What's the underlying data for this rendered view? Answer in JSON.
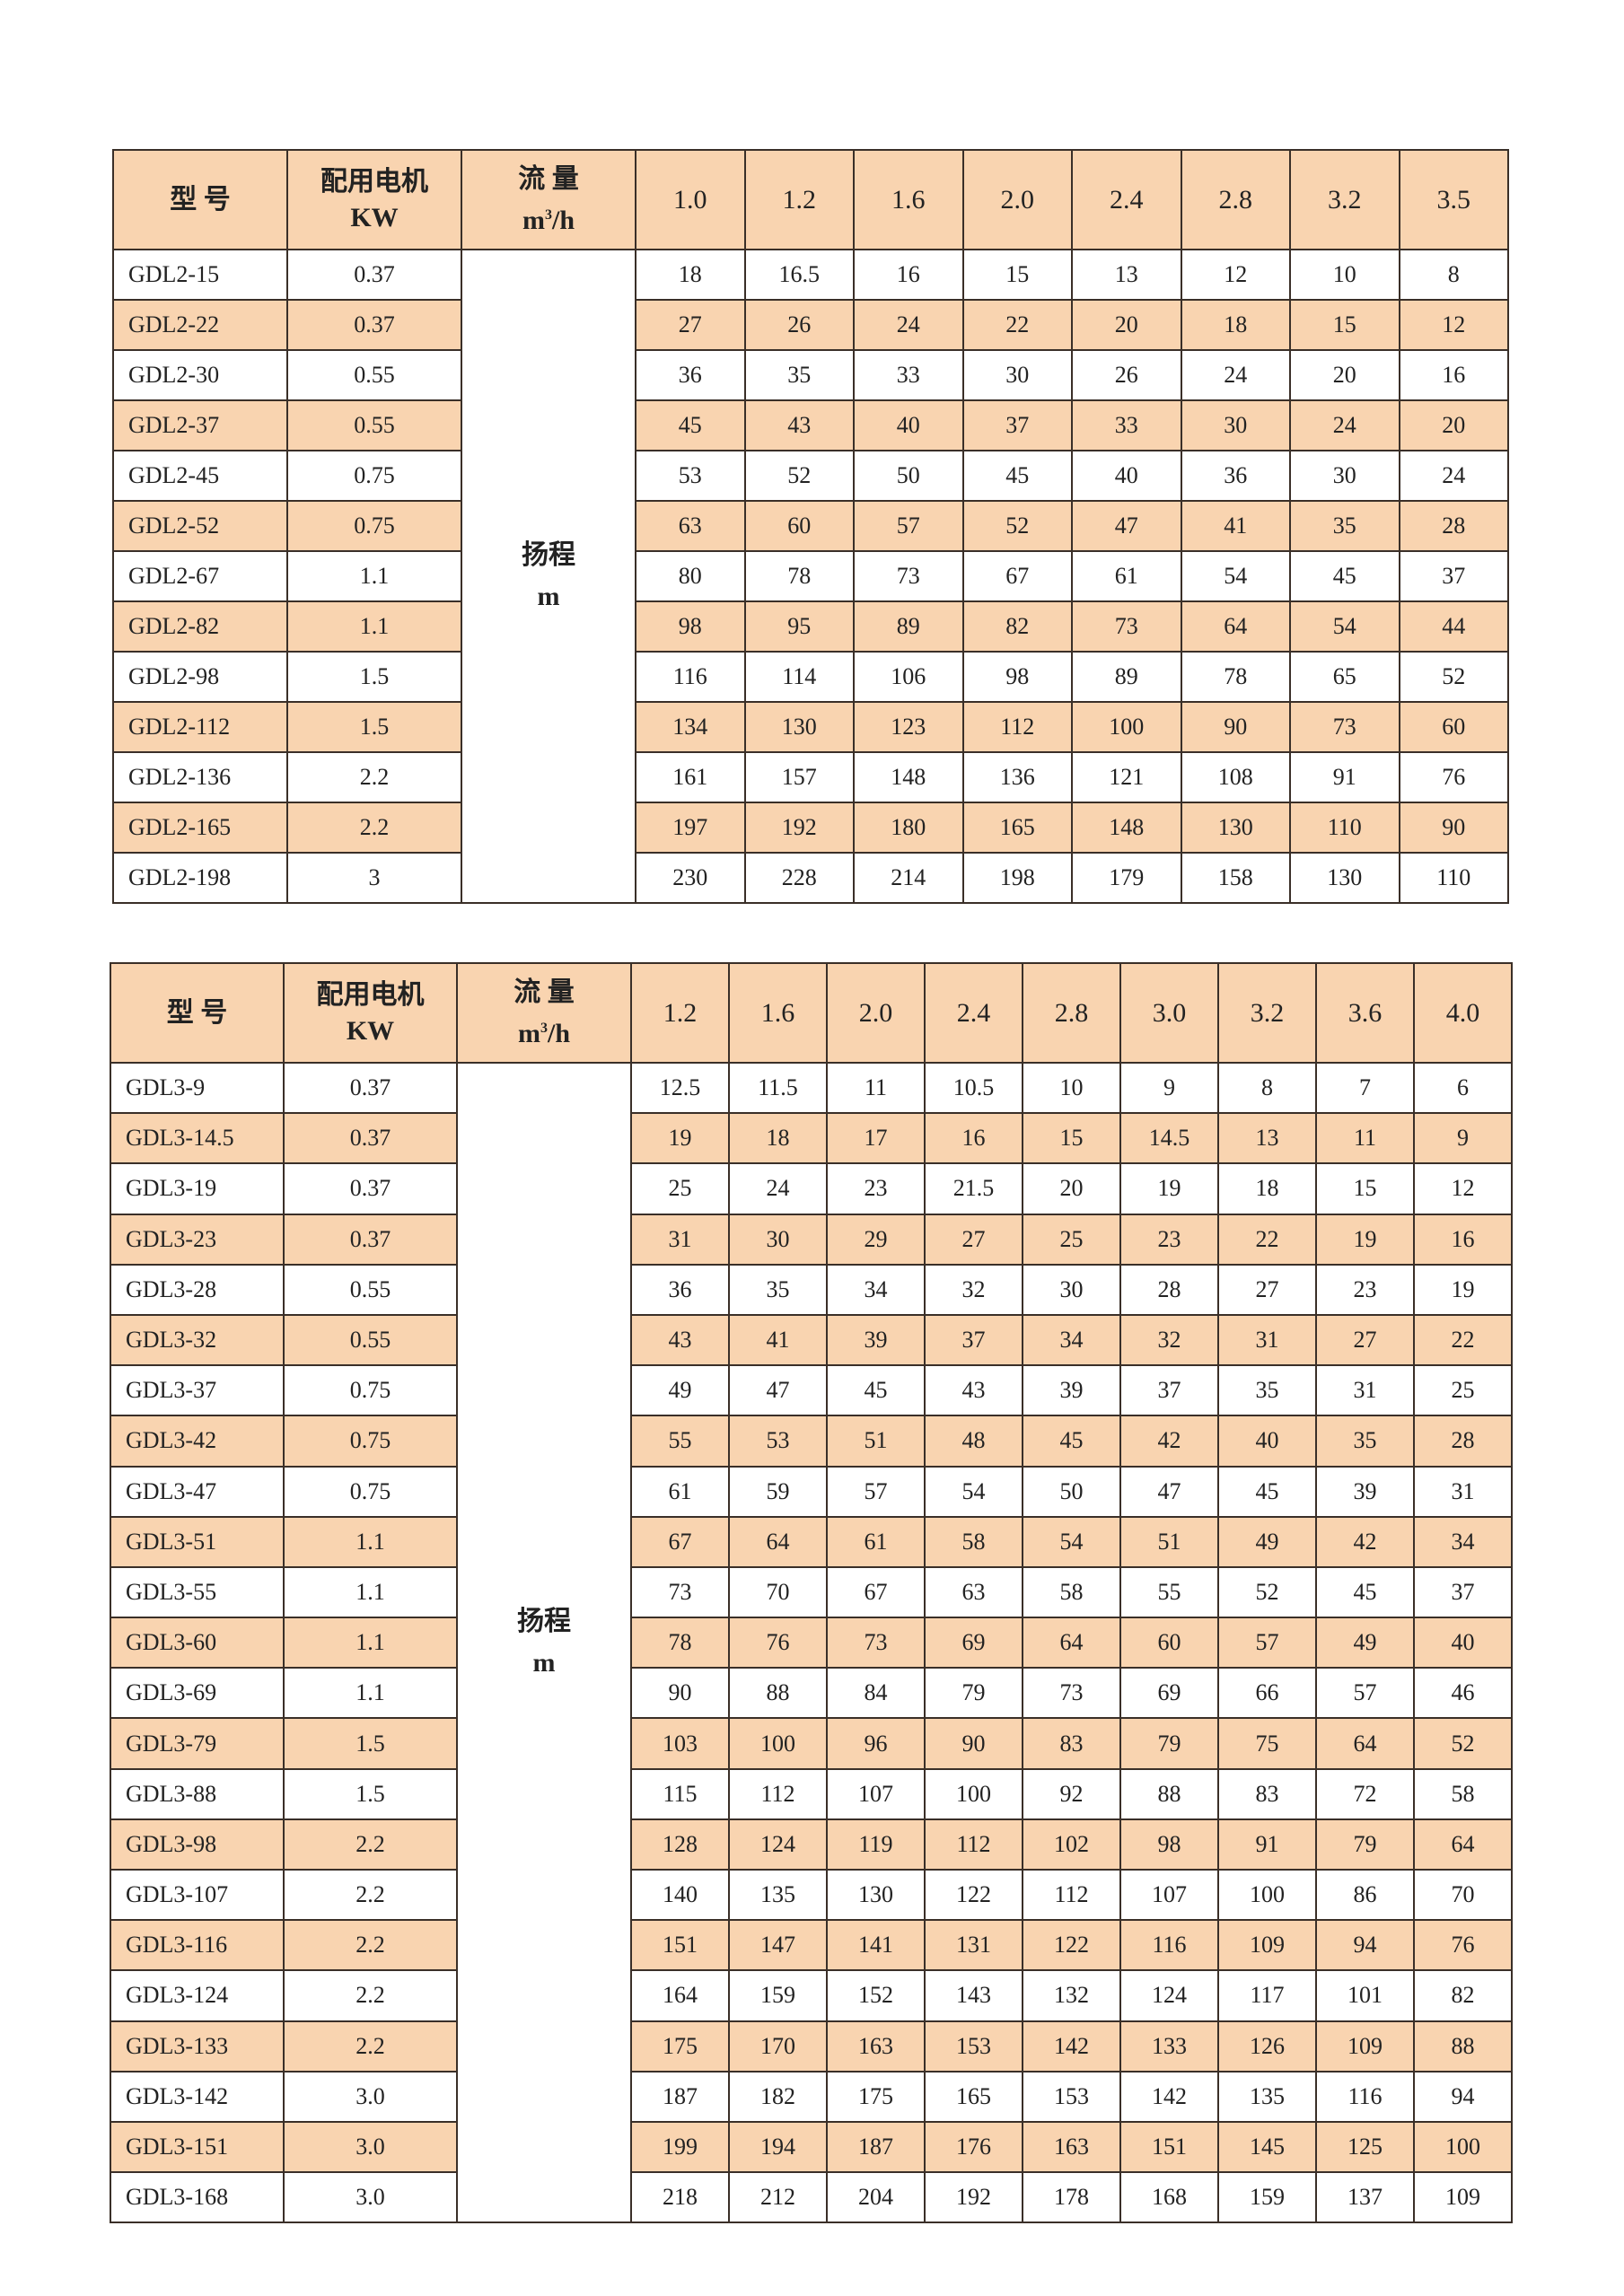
{
  "colors": {
    "header_bg": "#f9d4b0",
    "alt_row_bg": "#f9d4b0",
    "border": "#3a2f28"
  },
  "tables": [
    {
      "headers": {
        "model": "型  号",
        "motor_line1": "配用电机",
        "motor_line2": "KW",
        "flow_line1": "流 量",
        "flow_unit_base": "m",
        "flow_unit_sup": "3",
        "flow_unit_tail": "/h"
      },
      "flows": [
        "1.0",
        "1.2",
        "1.6",
        "2.0",
        "2.4",
        "2.8",
        "3.2",
        "3.5"
      ],
      "head_label": "扬程",
      "head_unit": "m",
      "rows": [
        {
          "model": "GDL2-15",
          "kw": "0.37",
          "heads": [
            "18",
            "16.5",
            "16",
            "15",
            "13",
            "12",
            "10",
            "8"
          ]
        },
        {
          "model": "GDL2-22",
          "kw": "0.37",
          "heads": [
            "27",
            "26",
            "24",
            "22",
            "20",
            "18",
            "15",
            "12"
          ]
        },
        {
          "model": "GDL2-30",
          "kw": "0.55",
          "heads": [
            "36",
            "35",
            "33",
            "30",
            "26",
            "24",
            "20",
            "16"
          ]
        },
        {
          "model": "GDL2-37",
          "kw": "0.55",
          "heads": [
            "45",
            "43",
            "40",
            "37",
            "33",
            "30",
            "24",
            "20"
          ]
        },
        {
          "model": "GDL2-45",
          "kw": "0.75",
          "heads": [
            "53",
            "52",
            "50",
            "45",
            "40",
            "36",
            "30",
            "24"
          ]
        },
        {
          "model": "GDL2-52",
          "kw": "0.75",
          "heads": [
            "63",
            "60",
            "57",
            "52",
            "47",
            "41",
            "35",
            "28"
          ]
        },
        {
          "model": "GDL2-67",
          "kw": "1.1",
          "heads": [
            "80",
            "78",
            "73",
            "67",
            "61",
            "54",
            "45",
            "37"
          ]
        },
        {
          "model": "GDL2-82",
          "kw": "1.1",
          "heads": [
            "98",
            "95",
            "89",
            "82",
            "73",
            "64",
            "54",
            "44"
          ]
        },
        {
          "model": "GDL2-98",
          "kw": "1.5",
          "heads": [
            "116",
            "114",
            "106",
            "98",
            "89",
            "78",
            "65",
            "52"
          ]
        },
        {
          "model": "GDL2-112",
          "kw": "1.5",
          "heads": [
            "134",
            "130",
            "123",
            "112",
            "100",
            "90",
            "73",
            "60"
          ]
        },
        {
          "model": "GDL2-136",
          "kw": "2.2",
          "heads": [
            "161",
            "157",
            "148",
            "136",
            "121",
            "108",
            "91",
            "76"
          ]
        },
        {
          "model": "GDL2-165",
          "kw": "2.2",
          "heads": [
            "197",
            "192",
            "180",
            "165",
            "148",
            "130",
            "110",
            "90"
          ]
        },
        {
          "model": "GDL2-198",
          "kw": "3",
          "heads": [
            "230",
            "228",
            "214",
            "198",
            "179",
            "158",
            "130",
            "110"
          ]
        }
      ]
    },
    {
      "headers": {
        "model": "型  号",
        "motor_line1": "配用电机",
        "motor_line2": "KW",
        "flow_line1": "流 量",
        "flow_unit_base": "m",
        "flow_unit_sup": "3",
        "flow_unit_tail": "/h"
      },
      "flows": [
        "1.2",
        "1.6",
        "2.0",
        "2.4",
        "2.8",
        "3.0",
        "3.2",
        "3.6",
        "4.0"
      ],
      "head_label": "扬程",
      "head_unit": "m",
      "rows": [
        {
          "model": "GDL3-9",
          "kw": "0.37",
          "heads": [
            "12.5",
            "11.5",
            "11",
            "10.5",
            "10",
            "9",
            "8",
            "7",
            "6"
          ]
        },
        {
          "model": "GDL3-14.5",
          "kw": "0.37",
          "heads": [
            "19",
            "18",
            "17",
            "16",
            "15",
            "14.5",
            "13",
            "11",
            "9"
          ]
        },
        {
          "model": "GDL3-19",
          "kw": "0.37",
          "heads": [
            "25",
            "24",
            "23",
            "21.5",
            "20",
            "19",
            "18",
            "15",
            "12"
          ]
        },
        {
          "model": "GDL3-23",
          "kw": "0.37",
          "heads": [
            "31",
            "30",
            "29",
            "27",
            "25",
            "23",
            "22",
            "19",
            "16"
          ]
        },
        {
          "model": "GDL3-28",
          "kw": "0.55",
          "heads": [
            "36",
            "35",
            "34",
            "32",
            "30",
            "28",
            "27",
            "23",
            "19"
          ]
        },
        {
          "model": "GDL3-32",
          "kw": "0.55",
          "heads": [
            "43",
            "41",
            "39",
            "37",
            "34",
            "32",
            "31",
            "27",
            "22"
          ]
        },
        {
          "model": "GDL3-37",
          "kw": "0.75",
          "heads": [
            "49",
            "47",
            "45",
            "43",
            "39",
            "37",
            "35",
            "31",
            "25"
          ]
        },
        {
          "model": "GDL3-42",
          "kw": "0.75",
          "heads": [
            "55",
            "53",
            "51",
            "48",
            "45",
            "42",
            "40",
            "35",
            "28"
          ]
        },
        {
          "model": "GDL3-47",
          "kw": "0.75",
          "heads": [
            "61",
            "59",
            "57",
            "54",
            "50",
            "47",
            "45",
            "39",
            "31"
          ]
        },
        {
          "model": "GDL3-51",
          "kw": "1.1",
          "heads": [
            "67",
            "64",
            "61",
            "58",
            "54",
            "51",
            "49",
            "42",
            "34"
          ]
        },
        {
          "model": "GDL3-55",
          "kw": "1.1",
          "heads": [
            "73",
            "70",
            "67",
            "63",
            "58",
            "55",
            "52",
            "45",
            "37"
          ]
        },
        {
          "model": "GDL3-60",
          "kw": "1.1",
          "heads": [
            "78",
            "76",
            "73",
            "69",
            "64",
            "60",
            "57",
            "49",
            "40"
          ]
        },
        {
          "model": "GDL3-69",
          "kw": "1.1",
          "heads": [
            "90",
            "88",
            "84",
            "79",
            "73",
            "69",
            "66",
            "57",
            "46"
          ]
        },
        {
          "model": "GDL3-79",
          "kw": "1.5",
          "heads": [
            "103",
            "100",
            "96",
            "90",
            "83",
            "79",
            "75",
            "64",
            "52"
          ]
        },
        {
          "model": "GDL3-88",
          "kw": "1.5",
          "heads": [
            "115",
            "112",
            "107",
            "100",
            "92",
            "88",
            "83",
            "72",
            "58"
          ]
        },
        {
          "model": "GDL3-98",
          "kw": "2.2",
          "heads": [
            "128",
            "124",
            "119",
            "112",
            "102",
            "98",
            "91",
            "79",
            "64"
          ]
        },
        {
          "model": "GDL3-107",
          "kw": "2.2",
          "heads": [
            "140",
            "135",
            "130",
            "122",
            "112",
            "107",
            "100",
            "86",
            "70"
          ]
        },
        {
          "model": "GDL3-116",
          "kw": "2.2",
          "heads": [
            "151",
            "147",
            "141",
            "131",
            "122",
            "116",
            "109",
            "94",
            "76"
          ]
        },
        {
          "model": "GDL3-124",
          "kw": "2.2",
          "heads": [
            "164",
            "159",
            "152",
            "143",
            "132",
            "124",
            "117",
            "101",
            "82"
          ]
        },
        {
          "model": "GDL3-133",
          "kw": "2.2",
          "heads": [
            "175",
            "170",
            "163",
            "153",
            "142",
            "133",
            "126",
            "109",
            "88"
          ]
        },
        {
          "model": "GDL3-142",
          "kw": "3.0",
          "heads": [
            "187",
            "182",
            "175",
            "165",
            "153",
            "142",
            "135",
            "116",
            "94"
          ]
        },
        {
          "model": "GDL3-151",
          "kw": "3.0",
          "heads": [
            "199",
            "194",
            "187",
            "176",
            "163",
            "151",
            "145",
            "125",
            "100"
          ]
        },
        {
          "model": "GDL3-168",
          "kw": "3.0",
          "heads": [
            "218",
            "212",
            "204",
            "192",
            "178",
            "168",
            "159",
            "137",
            "109"
          ]
        }
      ]
    }
  ]
}
